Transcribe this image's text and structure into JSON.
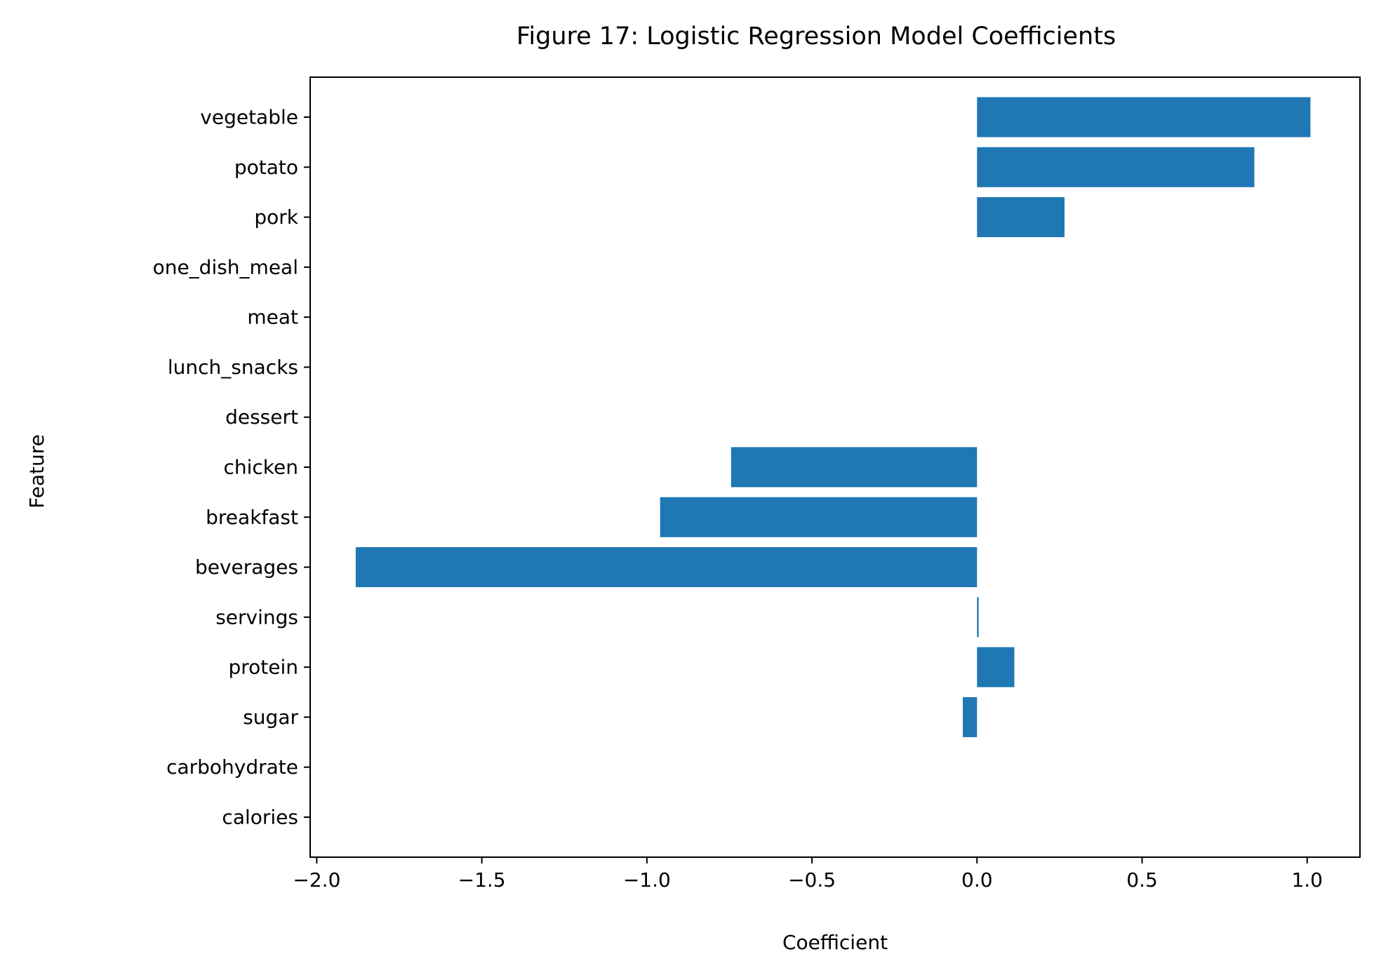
{
  "chart_data": {
    "type": "bar",
    "orientation": "horizontal",
    "title": "Figure 17: Logistic Regression Model Coefficients",
    "xlabel": "Coefficient",
    "ylabel": "Feature",
    "categories": [
      "calories",
      "carbohydrate",
      "sugar",
      "protein",
      "servings",
      "beverages",
      "breakfast",
      "chicken",
      "dessert",
      "lunch_snacks",
      "meat",
      "one_dish_meal",
      "pork",
      "potato",
      "vegetable"
    ],
    "values": [
      0.0,
      0.0,
      -0.043,
      0.113,
      0.005,
      -1.882,
      -0.96,
      -0.745,
      0.0,
      0.0,
      0.0,
      0.0,
      0.265,
      0.84,
      1.01
    ],
    "xlim": [
      -2.02,
      1.16
    ],
    "xticks": [
      -2.0,
      -1.5,
      -1.0,
      -0.5,
      0.0,
      0.5,
      1.0
    ],
    "xtick_labels": [
      "−2.0",
      "−1.5",
      "−1.0",
      "−0.5",
      "0.0",
      "0.5",
      "1.0"
    ],
    "grid": false,
    "bar_color": "#1f77b4"
  }
}
